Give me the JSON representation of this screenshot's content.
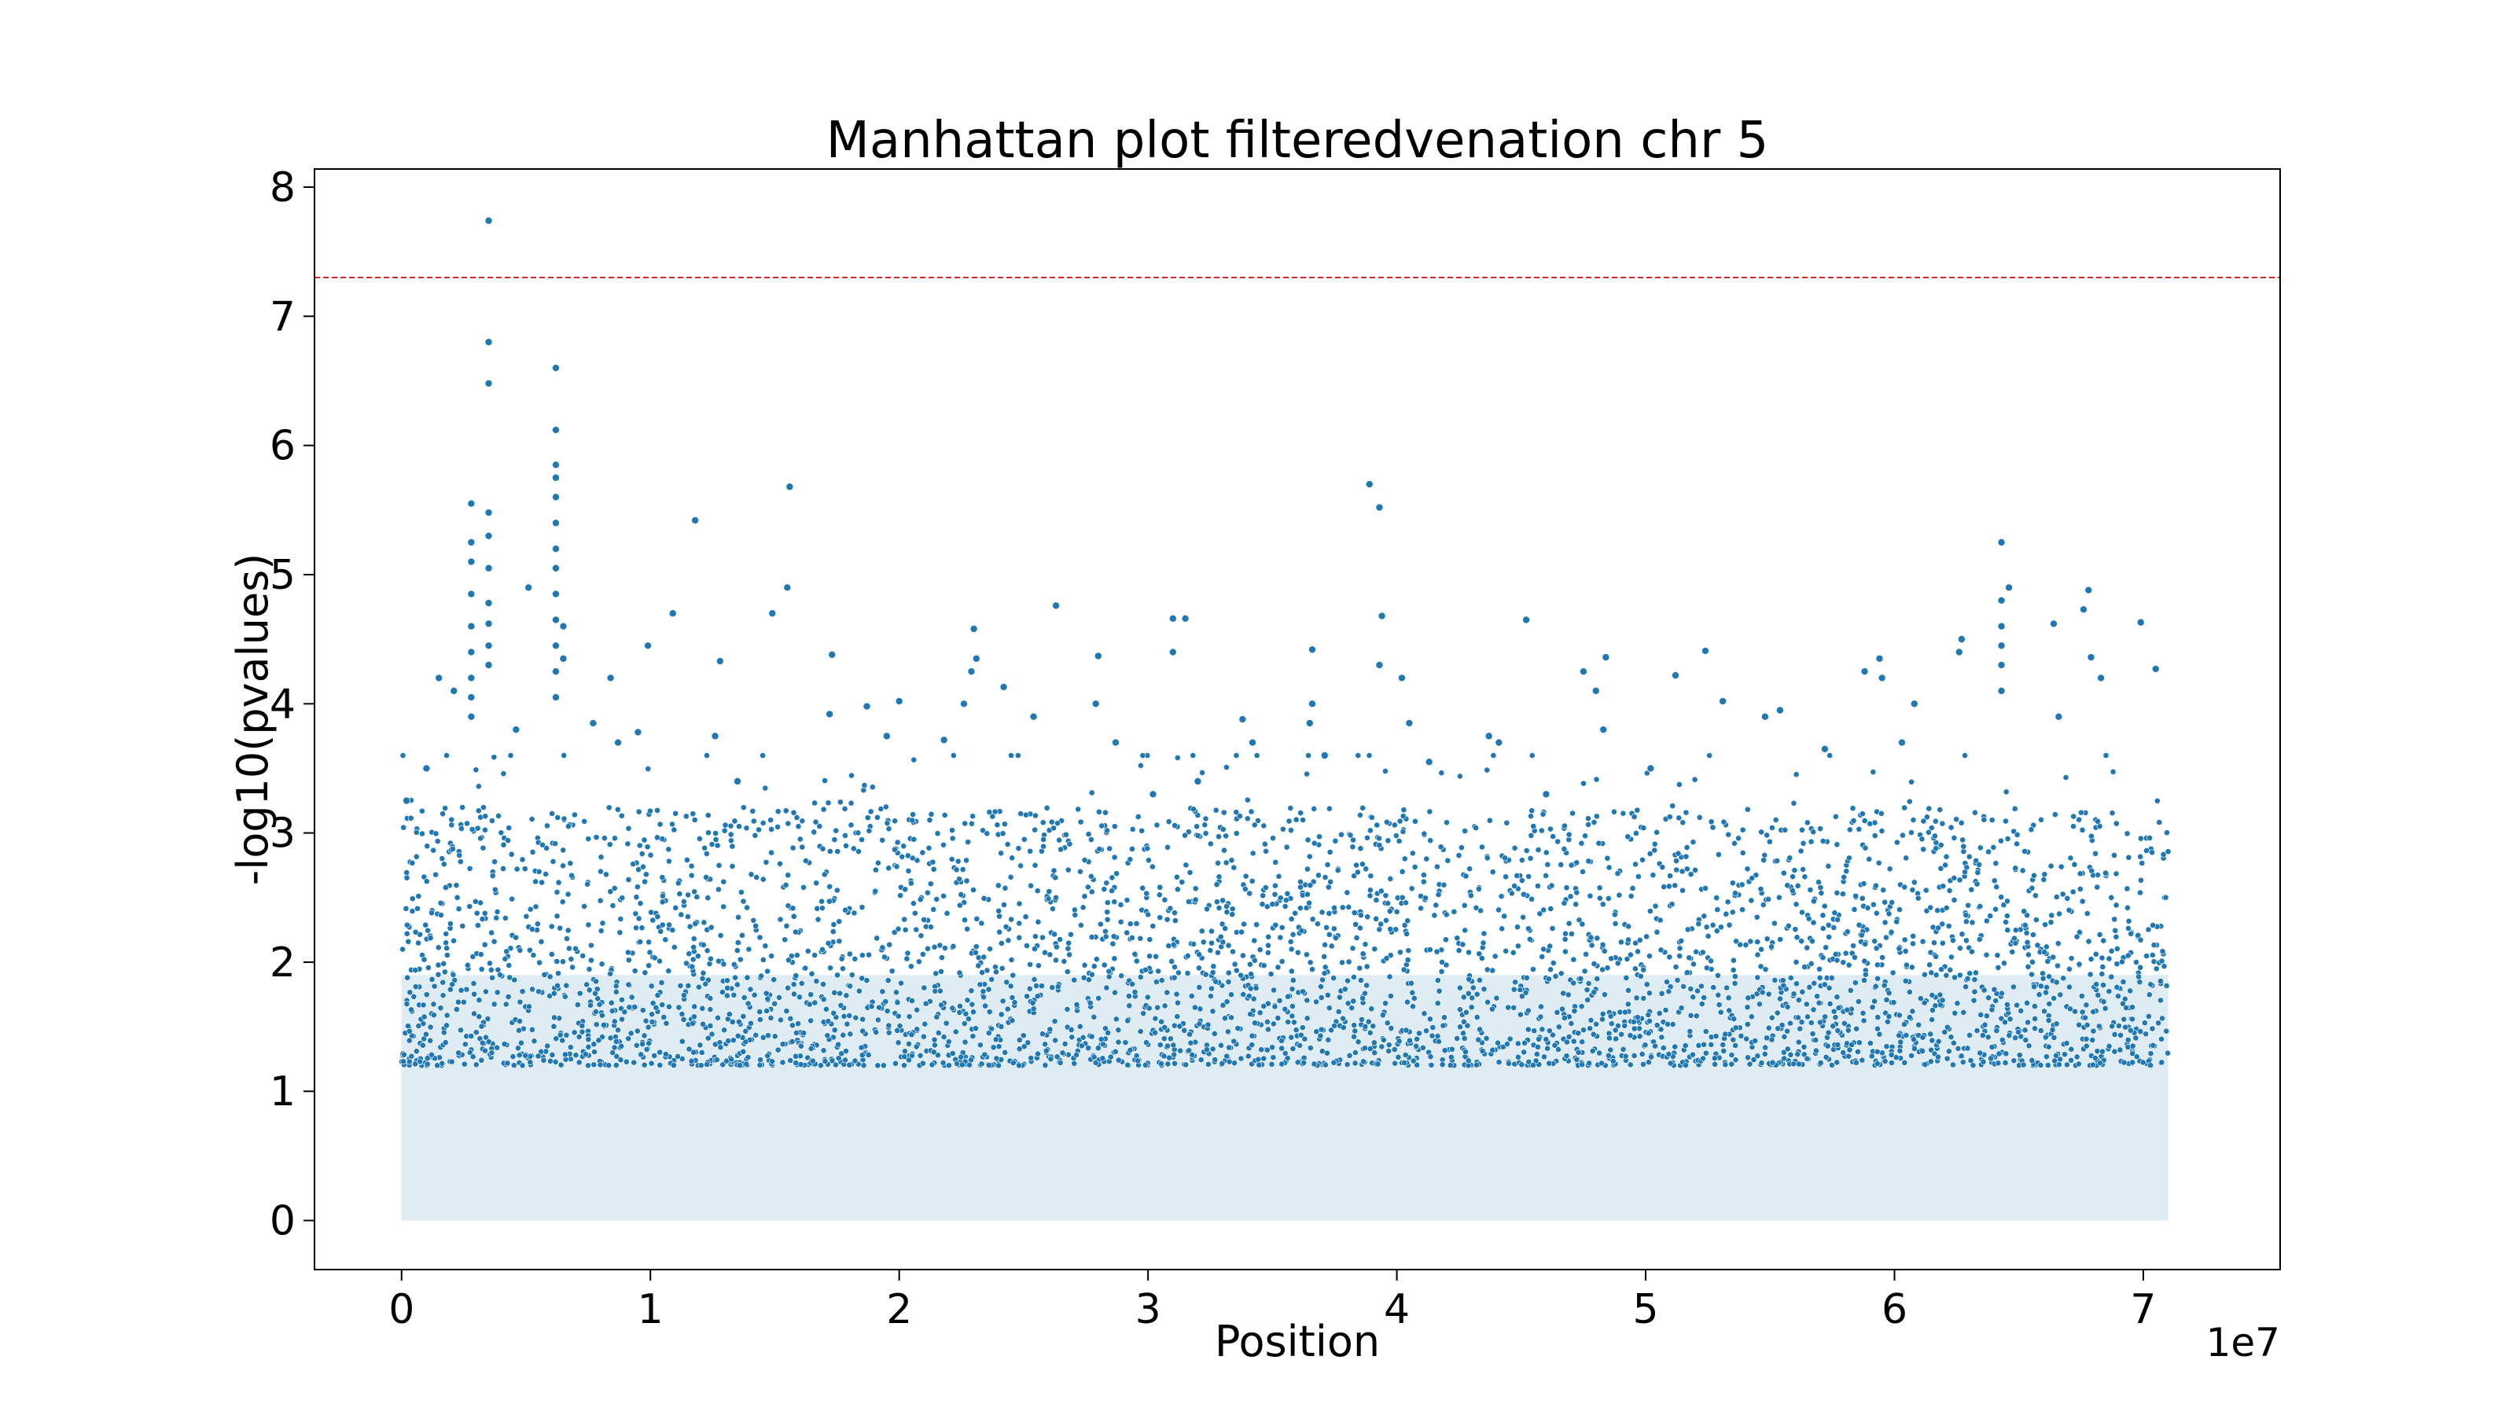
{
  "chart_data": {
    "type": "scatter",
    "title": "Manhattan plot filteredvenation chr 5",
    "xlabel": "Position",
    "ylabel": "-log10(pvalues)",
    "x_offset_label": "1e7",
    "xlim": [
      -3500000,
      75500000
    ],
    "ylim": [
      -0.38,
      8.14
    ],
    "x_ticks": [
      0,
      10000000,
      20000000,
      30000000,
      40000000,
      50000000,
      60000000,
      70000000
    ],
    "x_tick_labels": [
      "0",
      "1",
      "2",
      "3",
      "4",
      "5",
      "6",
      "7"
    ],
    "y_ticks": [
      0,
      1,
      2,
      3,
      4,
      5,
      6,
      7,
      8
    ],
    "y_tick_labels": [
      "0",
      "1",
      "2",
      "3",
      "4",
      "5",
      "6",
      "7",
      "8"
    ],
    "threshold": {
      "y": 7.3,
      "color": "#d62728",
      "style": "dashed"
    },
    "point_color": "#1f77b4",
    "grid": false,
    "x_range_of_data": [
      0,
      71000000
    ],
    "series": [
      {
        "values": [
          [
            3500000,
            7.74
          ],
          [
            3500000,
            6.8
          ],
          [
            3500000,
            6.48
          ],
          [
            3500000,
            5.48
          ],
          [
            3500000,
            5.3
          ],
          [
            3500000,
            5.05
          ],
          [
            3500000,
            4.78
          ],
          [
            3500000,
            4.62
          ],
          [
            3500000,
            4.45
          ],
          [
            3500000,
            4.3
          ],
          [
            2800000,
            5.55
          ],
          [
            2800000,
            5.25
          ],
          [
            2800000,
            5.1
          ],
          [
            2800000,
            4.85
          ],
          [
            2800000,
            4.6
          ],
          [
            2800000,
            4.4
          ],
          [
            2800000,
            4.2
          ],
          [
            2800000,
            4.05
          ],
          [
            2800000,
            3.9
          ],
          [
            6200000,
            6.6
          ],
          [
            6200000,
            6.12
          ],
          [
            6200000,
            5.85
          ],
          [
            6200000,
            5.75
          ],
          [
            6200000,
            5.6
          ],
          [
            6200000,
            5.4
          ],
          [
            6200000,
            5.2
          ],
          [
            6200000,
            5.05
          ],
          [
            6200000,
            4.85
          ],
          [
            6200000,
            4.65
          ],
          [
            6200000,
            4.45
          ],
          [
            6200000,
            4.25
          ],
          [
            6200000,
            4.05
          ],
          [
            6500000,
            4.6
          ],
          [
            6500000,
            4.35
          ],
          [
            5100000,
            4.9
          ],
          [
            11800000,
            5.42
          ],
          [
            15600000,
            5.68
          ],
          [
            15500000,
            4.9
          ],
          [
            14900000,
            4.7
          ],
          [
            10900000,
            4.7
          ],
          [
            9900000,
            4.45
          ],
          [
            8400000,
            4.2
          ],
          [
            1500000,
            4.2
          ],
          [
            2100000,
            4.1
          ],
          [
            12800000,
            4.33
          ],
          [
            17300000,
            4.38
          ],
          [
            21800000,
            3.72
          ],
          [
            22600000,
            4.0
          ],
          [
            23000000,
            4.58
          ],
          [
            23100000,
            4.35
          ],
          [
            22900000,
            4.25
          ],
          [
            24200000,
            4.13
          ],
          [
            26300000,
            4.76
          ],
          [
            28000000,
            4.37
          ],
          [
            27900000,
            4.0
          ],
          [
            31000000,
            4.66
          ],
          [
            31000000,
            4.4
          ],
          [
            31500000,
            4.66
          ],
          [
            32000000,
            3.4
          ],
          [
            36600000,
            4.42
          ],
          [
            36600000,
            4.0
          ],
          [
            36500000,
            3.85
          ],
          [
            38900000,
            5.7
          ],
          [
            39300000,
            5.52
          ],
          [
            39400000,
            4.68
          ],
          [
            39300000,
            4.3
          ],
          [
            40200000,
            4.2
          ],
          [
            40500000,
            3.85
          ],
          [
            45200000,
            4.65
          ],
          [
            47500000,
            4.25
          ],
          [
            48400000,
            4.36
          ],
          [
            48000000,
            4.1
          ],
          [
            48300000,
            3.8
          ],
          [
            51200000,
            4.22
          ],
          [
            52400000,
            4.41
          ],
          [
            53100000,
            4.02
          ],
          [
            55400000,
            3.95
          ],
          [
            58800000,
            4.25
          ],
          [
            59400000,
            4.35
          ],
          [
            59500000,
            4.2
          ],
          [
            60800000,
            4.0
          ],
          [
            62700000,
            4.5
          ],
          [
            62600000,
            4.4
          ],
          [
            64300000,
            5.25
          ],
          [
            64300000,
            4.8
          ],
          [
            64300000,
            4.6
          ],
          [
            64300000,
            4.45
          ],
          [
            64300000,
            4.3
          ],
          [
            64300000,
            4.1
          ],
          [
            64600000,
            4.9
          ],
          [
            66400000,
            4.62
          ],
          [
            67600000,
            4.73
          ],
          [
            67800000,
            4.88
          ],
          [
            67900000,
            4.36
          ],
          [
            69900000,
            4.63
          ],
          [
            70500000,
            4.27
          ],
          [
            68300000,
            4.2
          ],
          [
            66600000,
            3.9
          ],
          [
            60300000,
            3.7
          ],
          [
            57200000,
            3.65
          ],
          [
            54800000,
            3.9
          ],
          [
            43700000,
            3.75
          ],
          [
            44100000,
            3.7
          ],
          [
            41300000,
            3.55
          ],
          [
            37100000,
            3.6
          ],
          [
            34200000,
            3.7
          ],
          [
            33800000,
            3.88
          ],
          [
            28700000,
            3.7
          ],
          [
            25400000,
            3.9
          ],
          [
            20000000,
            4.02
          ],
          [
            19500000,
            3.75
          ],
          [
            18700000,
            3.98
          ],
          [
            17200000,
            3.92
          ],
          [
            12600000,
            3.75
          ],
          [
            9500000,
            3.78
          ],
          [
            8700000,
            3.7
          ],
          [
            7700000,
            3.85
          ],
          [
            4600000,
            3.8
          ],
          [
            1000000,
            3.5
          ],
          [
            200000,
            3.25
          ],
          [
            13500000,
            3.4
          ],
          [
            30200000,
            3.3
          ],
          [
            46000000,
            3.3
          ],
          [
            50200000,
            3.5
          ]
        ]
      }
    ]
  }
}
